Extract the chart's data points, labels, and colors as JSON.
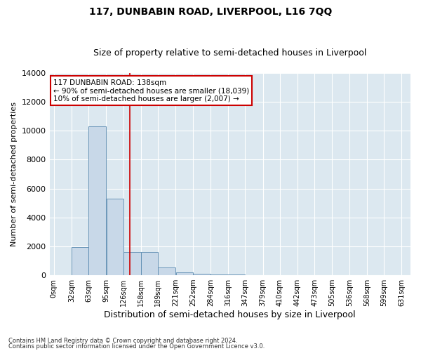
{
  "title": "117, DUNBABIN ROAD, LIVERPOOL, L16 7QQ",
  "subtitle": "Size of property relative to semi-detached houses in Liverpool",
  "xlabel": "Distribution of semi-detached houses by size in Liverpool",
  "ylabel": "Number of semi-detached properties",
  "footnote1": "Contains HM Land Registry data © Crown copyright and database right 2024.",
  "footnote2": "Contains public sector information licensed under the Open Government Licence v3.0.",
  "annotation_title": "117 DUNBABIN ROAD: 138sqm",
  "annotation_line1": "← 90% of semi-detached houses are smaller (18,039)",
  "annotation_line2": "10% of semi-detached houses are larger (2,007) →",
  "property_size": 138,
  "bar_left_edges": [
    0,
    32,
    63,
    95,
    126,
    158,
    189,
    221,
    252,
    284,
    316,
    347,
    379,
    410,
    442,
    473,
    505,
    536,
    568,
    599
  ],
  "bar_widths": [
    32,
    31,
    32,
    31,
    32,
    31,
    32,
    31,
    32,
    32,
    31,
    32,
    31,
    32,
    31,
    32,
    31,
    32,
    31,
    32
  ],
  "bar_heights": [
    0,
    1950,
    10300,
    5300,
    1600,
    1600,
    550,
    200,
    100,
    50,
    50,
    0,
    0,
    0,
    0,
    0,
    0,
    0,
    0,
    0
  ],
  "bar_color": "#c8d8e8",
  "bar_edge_color": "#5a8ab0",
  "vline_x": 138,
  "vline_color": "#cc0000",
  "ylim": [
    0,
    14000
  ],
  "yticks": [
    0,
    2000,
    4000,
    6000,
    8000,
    10000,
    12000,
    14000
  ],
  "xlim_min": -8,
  "xlim_max": 647,
  "x_tick_labels": [
    "0sqm",
    "32sqm",
    "63sqm",
    "95sqm",
    "126sqm",
    "158sqm",
    "189sqm",
    "221sqm",
    "252sqm",
    "284sqm",
    "316sqm",
    "347sqm",
    "379sqm",
    "410sqm",
    "442sqm",
    "473sqm",
    "505sqm",
    "536sqm",
    "568sqm",
    "599sqm",
    "631sqm"
  ],
  "x_tick_positions": [
    0,
    32,
    63,
    95,
    126,
    158,
    189,
    221,
    252,
    284,
    316,
    347,
    379,
    410,
    442,
    473,
    505,
    536,
    568,
    599,
    631
  ],
  "bg_color": "#dce8f0",
  "grid_color": "#ffffff",
  "title_fontsize": 10,
  "subtitle_fontsize": 9,
  "ylabel_fontsize": 8,
  "xlabel_fontsize": 9,
  "ytick_fontsize": 8,
  "xtick_fontsize": 7,
  "annotation_fontsize": 7.5,
  "annotation_box_color": "#ffffff",
  "annotation_box_edge": "#cc0000",
  "footnote_fontsize": 6
}
